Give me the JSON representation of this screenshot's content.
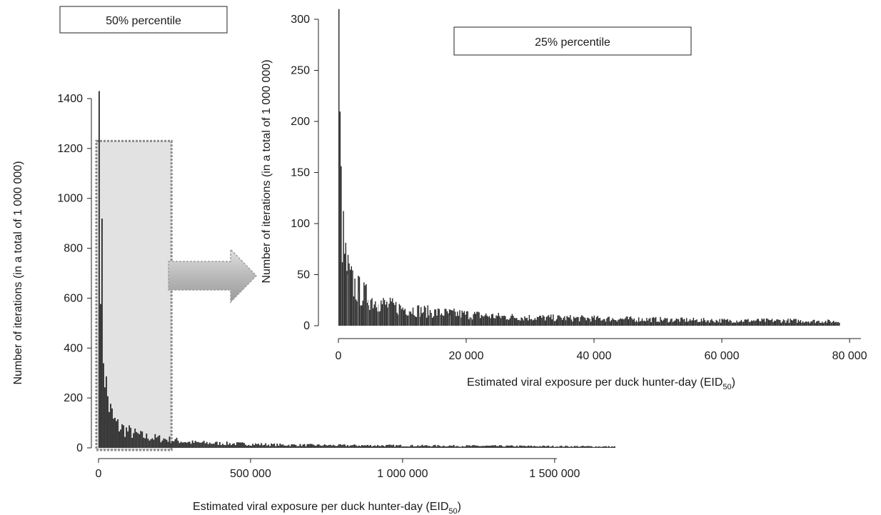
{
  "chart_data": [
    {
      "type": "bar",
      "panel_label": "50% percentile",
      "xlabel": "Estimated viral exposure per duck hunter-day (EID",
      "xlabel_subscript": "50",
      "xlabel_suffix": ")",
      "ylabel": "Number of iterations (in a total of 1 000 000)",
      "xlim": [
        0,
        1700000
      ],
      "ylim": [
        0,
        1400
      ],
      "xticks": [
        0,
        500000,
        1000000,
        1500000
      ],
      "xtick_labels": [
        "0",
        "500 000",
        "1 000 000",
        "1 500 000"
      ],
      "yticks": [
        0,
        200,
        400,
        600,
        800,
        1000,
        1200,
        1400
      ],
      "ytick_labels": [
        "0",
        "200",
        "400",
        "600",
        "800",
        "1000",
        "1200",
        "1400"
      ],
      "series": [
        {
          "x": [
            0,
            12000,
            24000,
            36000,
            48000,
            60000,
            90000,
            120000,
            150000,
            180000,
            220000,
            300000,
            400000,
            500000,
            600000,
            800000,
            1000000,
            1200000,
            1400000,
            1600000,
            1700000
          ],
          "values": [
            1430,
            460,
            230,
            150,
            110,
            90,
            70,
            55,
            45,
            40,
            35,
            22,
            18,
            15,
            12,
            10,
            9,
            8,
            7,
            6,
            5
          ]
        }
      ],
      "highlight_region": {
        "x_range": [
          0,
          240000
        ],
        "y_top": 1230
      }
    },
    {
      "type": "bar",
      "panel_label": "25% percentile",
      "xlabel": "Estimated viral exposure per duck hunter-day (EID",
      "xlabel_subscript": "50",
      "xlabel_suffix": ")",
      "ylabel": "Number of iterations (in a total of 1 000 000)",
      "xlim": [
        0,
        80000
      ],
      "ylim": [
        0,
        300
      ],
      "xticks": [
        0,
        20000,
        40000,
        60000,
        80000
      ],
      "xtick_labels": [
        "0",
        "20 000",
        "40 000",
        "60 000",
        "80 000"
      ],
      "yticks": [
        0,
        50,
        100,
        150,
        200,
        250,
        300
      ],
      "ytick_labels": [
        "0",
        "50",
        "100",
        "150",
        "200",
        "250",
        "300"
      ],
      "series": [
        {
          "x": [
            0,
            200,
            400,
            600,
            800,
            1000,
            1500,
            2000,
            3000,
            4000,
            5000,
            7500,
            10000,
            15000,
            20000,
            25000,
            30000,
            40000,
            50000,
            60000,
            70000,
            78500
          ],
          "values": [
            310,
            168,
            110,
            90,
            75,
            65,
            50,
            42,
            35,
            30,
            26,
            20,
            17,
            13,
            11,
            9,
            8,
            7,
            6,
            5,
            5,
            4
          ]
        }
      ]
    }
  ]
}
